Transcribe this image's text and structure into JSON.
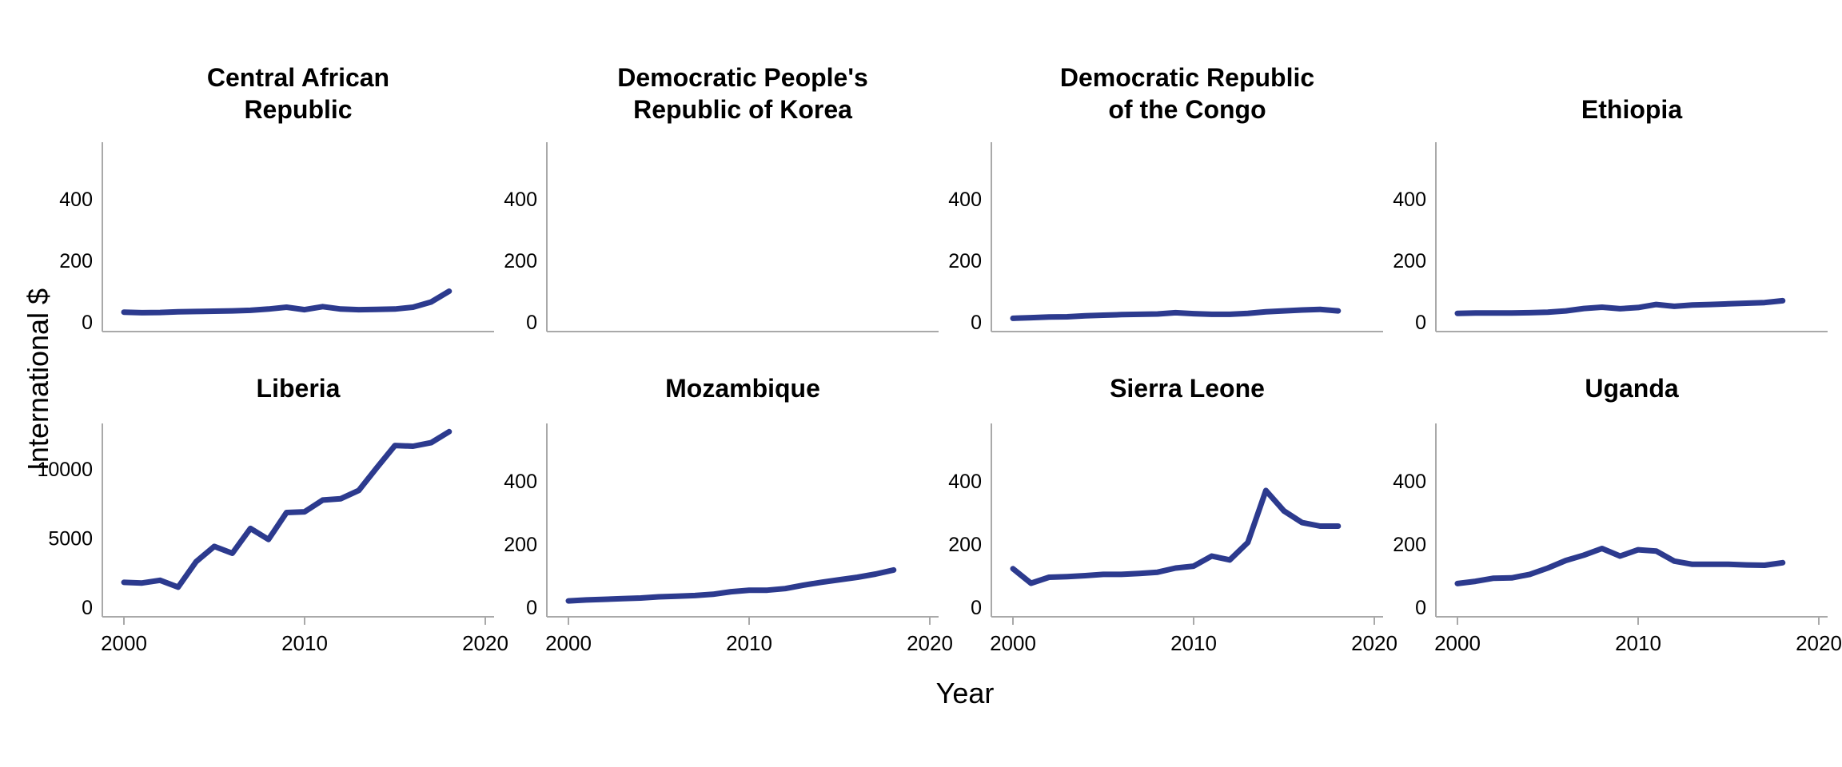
{
  "figure": {
    "y_axis_label": "International $",
    "x_axis_label": "Year",
    "line_color": "#2c3a8e",
    "axis_color": "#a9a9a9",
    "text_color": "#000000",
    "background": "#ffffff"
  },
  "chart_data": {
    "type": "line",
    "layout": "2x4 small multiples, shared axes labels, no gridlines, no legend",
    "x_start_year": 2000,
    "x_end_year": 2018,
    "x_ticks": [
      2000,
      2010,
      2020
    ],
    "xlabel": "Year",
    "ylabel": "International $",
    "panels": [
      {
        "title": "Central African Republic",
        "title_lines": [
          "Central African",
          "Republic"
        ],
        "yticks": [
          0,
          200,
          400
        ],
        "values": [
          32,
          30,
          31,
          33,
          34,
          35,
          36,
          38,
          42,
          48,
          40,
          50,
          42,
          40,
          41,
          42,
          48,
          65,
          100
        ]
      },
      {
        "title": "Democratic People's Republic of Korea",
        "title_lines": [
          "Democratic People's",
          "Republic of Korea"
        ],
        "yticks": [
          0,
          200,
          400
        ],
        "values": []
      },
      {
        "title": "Democratic Republic of the Congo",
        "title_lines": [
          "Democratic Republic",
          "of the Congo"
        ],
        "yticks": [
          0,
          200,
          400
        ],
        "values": [
          12,
          14,
          16,
          17,
          20,
          22,
          24,
          25,
          26,
          30,
          27,
          25,
          25,
          28,
          33,
          36,
          39,
          41,
          36
        ]
      },
      {
        "title": "Ethiopia",
        "title_lines": [
          "Ethiopia"
        ],
        "yticks": [
          0,
          200,
          400
        ],
        "values": [
          28,
          29,
          29,
          29,
          30,
          32,
          36,
          44,
          48,
          43,
          47,
          57,
          51,
          55,
          57,
          59,
          61,
          63,
          69
        ]
      },
      {
        "title": "Liberia",
        "title_lines": [
          "Liberia"
        ],
        "yticks": [
          0,
          5000,
          10000
        ],
        "values": [
          1800,
          1750,
          1950,
          1450,
          3300,
          4400,
          3900,
          5700,
          4900,
          6850,
          6900,
          7750,
          7850,
          8450,
          10100,
          11700,
          11650,
          11900,
          12700
        ]
      },
      {
        "title": "Mozambique",
        "title_lines": [
          "Mozambique"
        ],
        "yticks": [
          0,
          200,
          400
        ],
        "values": [
          20,
          23,
          25,
          27,
          29,
          33,
          35,
          37,
          41,
          49,
          54,
          54,
          59,
          70,
          79,
          87,
          95,
          105,
          118
        ]
      },
      {
        "title": "Sierra Leone",
        "title_lines": [
          "Sierra Leone"
        ],
        "yticks": [
          0,
          200,
          400
        ],
        "values": [
          122,
          76,
          95,
          97,
          100,
          104,
          104,
          107,
          111,
          124,
          130,
          162,
          150,
          205,
          370,
          305,
          268,
          257,
          257
        ]
      },
      {
        "title": "Uganda",
        "title_lines": [
          "Uganda"
        ],
        "yticks": [
          0,
          200,
          400
        ],
        "values": [
          75,
          82,
          92,
          93,
          104,
          124,
          148,
          165,
          186,
          162,
          182,
          178,
          146,
          136,
          136,
          136,
          134,
          133,
          141
        ]
      }
    ]
  }
}
